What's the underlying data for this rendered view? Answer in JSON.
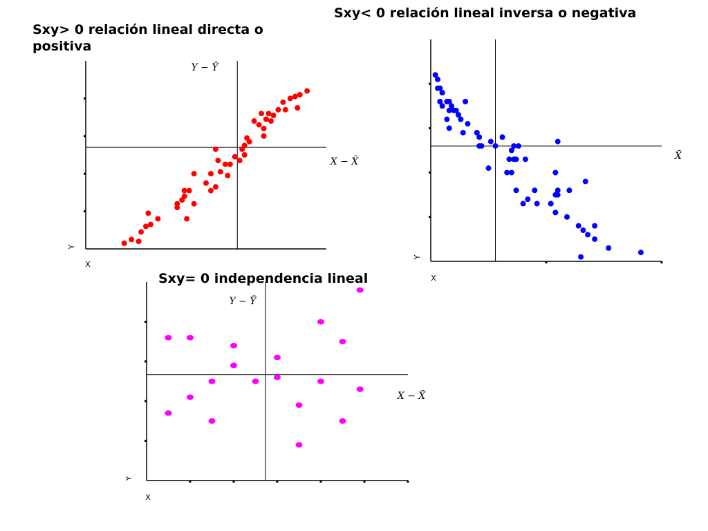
{
  "chart_data": [
    {
      "type": "scatter",
      "title": "Sxy> 0 relación lineal directa o positiva",
      "x_label": "X",
      "y_label": "Y",
      "annotations": [
        "Y − Ȳ",
        "X − X̄"
      ],
      "color": "#ff0000",
      "xlim": [
        0,
        10
      ],
      "ylim": [
        0,
        10
      ],
      "yticks": [
        2,
        4,
        6,
        8
      ],
      "mean_x": 6.3,
      "mean_y": 5.4,
      "x": [
        1.6,
        1.9,
        2.2,
        2.3,
        2.5,
        2.6,
        2.7,
        3.0,
        3.8,
        3.8,
        4.0,
        4.1,
        4.1,
        4.2,
        4.3,
        4.5,
        4.5,
        5.0,
        5.2,
        5.2,
        5.4,
        5.5,
        5.6,
        5.8,
        5.9,
        6.0,
        5.4,
        6.2,
        6.4,
        6.5,
        6.6,
        6.6,
        6.7,
        6.8,
        7.0,
        7.2,
        7.3,
        7.4,
        7.4,
        7.5,
        7.6,
        7.7,
        7.8,
        8.0,
        8.2,
        8.3,
        8.5,
        8.7,
        8.8,
        8.9,
        9.2
      ],
      "y": [
        0.3,
        0.5,
        0.4,
        0.9,
        1.2,
        1.9,
        1.3,
        1.6,
        2.2,
        2.4,
        2.6,
        2.8,
        3.1,
        1.6,
        3.1,
        4.0,
        2.4,
        3.5,
        3.1,
        4.0,
        3.3,
        4.7,
        4.1,
        4.5,
        3.9,
        4.5,
        5.3,
        4.9,
        4.7,
        5.3,
        5.0,
        5.5,
        5.9,
        5.7,
        6.8,
        6.6,
        7.2,
        6.0,
        6.4,
        6.9,
        7.2,
        6.8,
        7.1,
        7.4,
        7.8,
        7.4,
        8.0,
        8.1,
        7.5,
        8.2,
        8.4
      ]
    },
    {
      "type": "scatter",
      "title": "Sxy< 0 relación lineal inversa o negativa",
      "x_label": "X",
      "y_label": "Y",
      "annotations": [
        "X̄"
      ],
      "color": "#0000ff",
      "xlim": [
        0,
        10
      ],
      "ylim": [
        0,
        5
      ],
      "yticks": [
        1,
        2,
        3,
        4
      ],
      "xticks": [
        5,
        10
      ],
      "mean_x": 2.8,
      "mean_y": 2.6,
      "x": [
        0.2,
        0.3,
        0.3,
        0.4,
        0.5,
        0.4,
        0.5,
        0.5,
        0.7,
        0.8,
        0.8,
        0.9,
        0.7,
        1.0,
        1.1,
        1.2,
        1.3,
        0.8,
        1.5,
        1.6,
        1.4,
        2.0,
        2.1,
        2.1,
        2.2,
        2.6,
        2.8,
        2.5,
        3.1,
        3.5,
        3.6,
        3.8,
        3.6,
        3.7,
        3.4,
        4.1,
        3.5,
        3.3,
        3.7,
        4.2,
        4.0,
        4.5,
        4.6,
        5.2,
        5.2,
        5.4,
        5.5,
        5.4,
        5.5,
        6.0,
        5.5,
        5.4,
        6.7,
        5.9,
        6.4,
        6.6,
        6.8,
        7.1,
        7.1,
        7.7,
        6.5,
        9.1
      ],
      "y": [
        4.2,
        4.1,
        3.9,
        3.9,
        3.8,
        3.6,
        3.8,
        3.5,
        3.6,
        3.6,
        3.4,
        3.5,
        3.2,
        3.4,
        3.4,
        3.3,
        3.2,
        3.0,
        3.6,
        3.1,
        2.9,
        2.9,
        2.8,
        2.6,
        2.6,
        2.7,
        2.6,
        2.1,
        2.8,
        2.5,
        2.6,
        2.6,
        2.3,
        2.3,
        2.3,
        2.3,
        2.0,
        2.0,
        1.6,
        1.4,
        1.3,
        1.6,
        1.3,
        1.3,
        1.3,
        1.5,
        1.5,
        1.1,
        1.6,
        1.6,
        2.7,
        2.0,
        1.8,
        1.0,
        0.8,
        0.7,
        0.6,
        0.8,
        0.5,
        0.3,
        0.1,
        0.2
      ]
    },
    {
      "type": "scatter",
      "title": "Sxy= 0 independencia lineal",
      "x_label": "X",
      "y_label": "Y",
      "annotations": [
        "Y − Ȳ",
        "X − X̄"
      ],
      "color": "#ff00ff",
      "xlim": [
        0,
        6
      ],
      "ylim": [
        0,
        5
      ],
      "yticks": [
        1,
        2,
        3,
        4
      ],
      "xticks": [
        1,
        2,
        3,
        4,
        5,
        6
      ],
      "mean_x": 2.73,
      "mean_y": 2.67,
      "x": [
        0.5,
        1.0,
        2.0,
        2.0,
        3.0,
        4.0,
        4.5,
        4.9,
        1.5,
        2.5,
        3.0,
        4.0,
        4.9,
        1.0,
        0.5,
        1.5,
        3.5,
        4.5,
        3.5
      ],
      "y": [
        3.6,
        3.6,
        3.4,
        2.9,
        3.1,
        4.0,
        3.5,
        4.8,
        2.5,
        2.5,
        2.6,
        2.5,
        2.3,
        2.1,
        1.7,
        1.5,
        1.9,
        1.5,
        0.9
      ]
    }
  ]
}
